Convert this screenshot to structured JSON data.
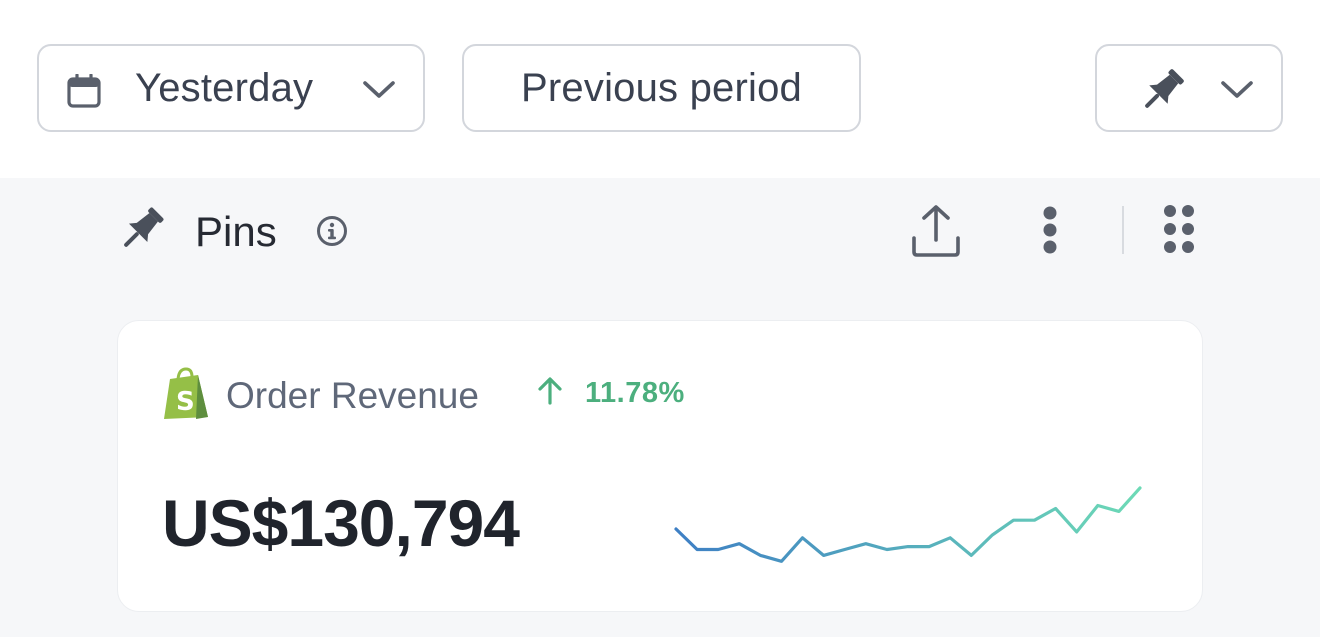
{
  "toolbar": {
    "date_range": {
      "label": "Yesterday",
      "icon": "calendar-icon"
    },
    "comparison": {
      "label": "Previous period"
    },
    "pin_menu": {
      "icon": "pin-icon"
    }
  },
  "section": {
    "title": "Pins",
    "icons": [
      "pin-icon",
      "info-icon",
      "share-icon",
      "more-vertical-icon",
      "drag-grid-icon"
    ]
  },
  "card": {
    "source_icon": "shopify-bag-icon",
    "metric_name": "Order Revenue",
    "trend": {
      "direction": "up",
      "value": "11.78%",
      "color": "#4caf7e"
    },
    "value": "US$130,794",
    "sparkline": {
      "points": [
        43,
        36,
        36,
        38,
        34,
        32,
        40,
        34,
        36,
        38,
        36,
        37,
        37,
        40,
        34,
        41,
        46,
        46,
        50,
        42,
        51,
        49,
        57
      ],
      "color_start": "#3e7fc4",
      "color_end": "#6ddab6"
    }
  },
  "colors": {
    "panel_background": "#f6f7f9",
    "button_border": "#d3d6dc",
    "icon": "#5a606c",
    "positive": "#4caf7e"
  }
}
